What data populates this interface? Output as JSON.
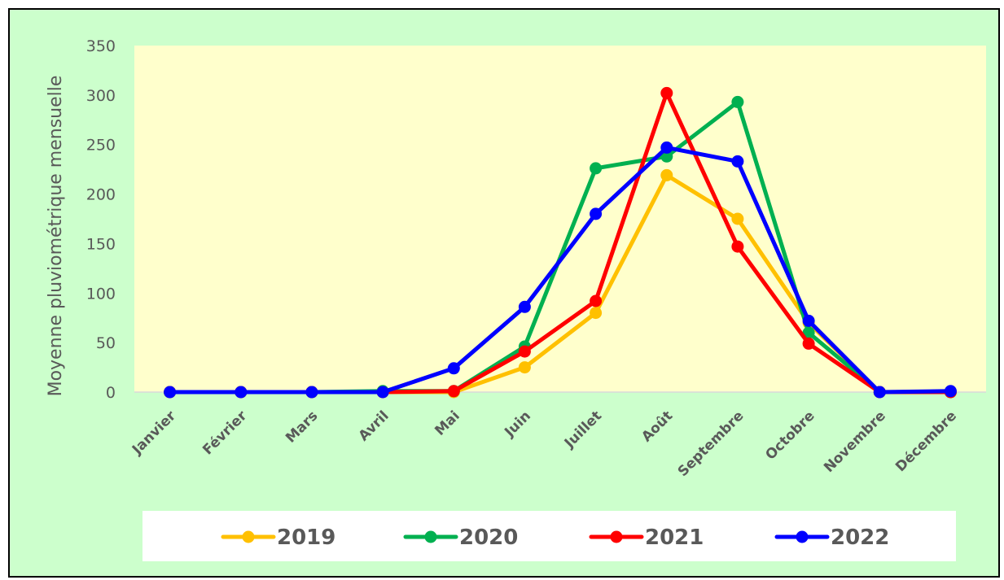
{
  "chart_data": {
    "type": "line",
    "title": "",
    "xlabel": "",
    "ylabel": "Moyenne pluviométrique mensuelle",
    "ylim": [
      0,
      350
    ],
    "yticks": [
      "0",
      "50",
      "100",
      "150",
      "200",
      "250",
      "300",
      "350"
    ],
    "categories": [
      "Janvier",
      "Février",
      "Mars",
      "Avril",
      "Mai",
      "Juin",
      "Juillet",
      "Août",
      "Septembre",
      "Octobre",
      "Novembre",
      "Décembre"
    ],
    "grid": false,
    "legend_position": "bottom",
    "plot_background": "#ffffcc",
    "figure_background": "#ccffcc",
    "series": [
      {
        "name": "2019",
        "color": "#ffc000",
        "values": [
          0,
          0,
          0,
          0,
          0,
          25,
          80,
          219,
          175,
          70,
          0,
          0
        ]
      },
      {
        "name": "2020",
        "color": "#00b050",
        "values": [
          0,
          0,
          0,
          1,
          1,
          46,
          226,
          238,
          293,
          60,
          0,
          0
        ]
      },
      {
        "name": "2021",
        "color": "#ff0000",
        "values": [
          0,
          0,
          0,
          0,
          1,
          41,
          92,
          302,
          147,
          49,
          0,
          0
        ]
      },
      {
        "name": "2022",
        "color": "#0000ff",
        "values": [
          0,
          0,
          0,
          0,
          24,
          86,
          180,
          247,
          233,
          72,
          0,
          1
        ]
      }
    ]
  }
}
